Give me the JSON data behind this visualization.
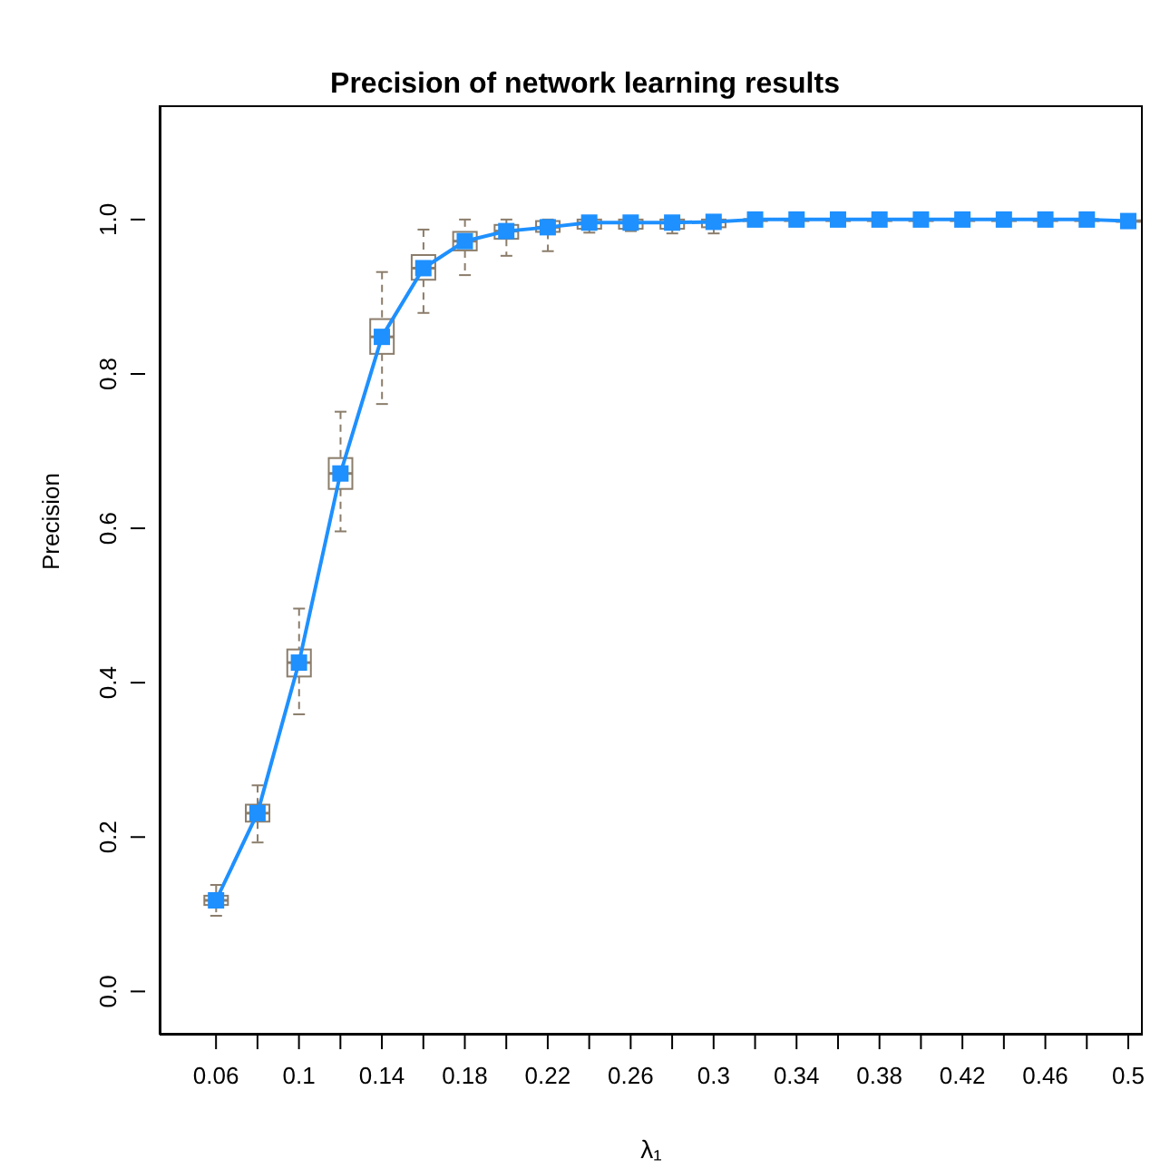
{
  "chart_data": {
    "type": "box",
    "title": "Precision of network learning results",
    "xlabel": "λ₁",
    "ylabel": "Precision",
    "categories": [
      "0.06",
      null,
      "0.1",
      null,
      "0.14",
      null,
      "0.18",
      null,
      "0.22",
      null,
      "0.26",
      null,
      "0.3",
      null,
      "0.34",
      null,
      "0.38",
      null,
      "0.42",
      null,
      "0.46",
      null,
      "0.5"
    ],
    "ylim": [
      -0.056,
      1.148
    ],
    "yticks": [
      {
        "value": 0,
        "label": "0.0"
      },
      0.2,
      0.4,
      0.6,
      0.8,
      {
        "value": 1,
        "label": "1.0"
      }
    ],
    "series": [
      {
        "color": "#8b7d6b",
        "line_style": "dashed",
        "boxes": [
          {
            "low": 0.098,
            "q1": 0.112,
            "median": 0.118,
            "q3": 0.124,
            "high": 0.138
          },
          {
            "low": 0.193,
            "q1": 0.22,
            "median": 0.231,
            "q3": 0.242,
            "high": 0.267
          },
          {
            "low": 0.359,
            "q1": 0.408,
            "median": 0.426,
            "q3": 0.443,
            "high": 0.496
          },
          {
            "low": 0.596,
            "q1": 0.651,
            "median": 0.671,
            "q3": 0.691,
            "high": 0.751
          },
          {
            "low": 0.761,
            "q1": 0.826,
            "median": 0.848,
            "q3": 0.871,
            "high": 0.932
          },
          {
            "low": 0.879,
            "q1": 0.922,
            "median": 0.937,
            "q3": 0.954,
            "high": 0.987
          },
          {
            "low": 0.928,
            "q1": 0.96,
            "median": 0.972,
            "q3": 0.984,
            "high": 1.0
          },
          {
            "low": 0.953,
            "q1": 0.975,
            "median": 0.985,
            "q3": 0.993,
            "high": 1.0
          },
          {
            "low": 0.959,
            "q1": 0.984,
            "median": 0.99,
            "q3": 0.998,
            "high": 1.0
          },
          {
            "low": 0.983,
            "q1": 0.988,
            "median": 0.996,
            "q3": 1.0,
            "high": 1.0
          },
          {
            "low": 0.985,
            "q1": 0.988,
            "median": 0.996,
            "q3": 1.0,
            "high": 1.0
          },
          {
            "low": 0.982,
            "q1": 0.988,
            "median": 0.996,
            "q3": 1.0,
            "high": 1.0
          },
          {
            "low": 0.982,
            "q1": 0.99,
            "median": 0.997,
            "q3": 1.0,
            "high": 1.0
          },
          {
            "low": 0.996,
            "q1": 0.998,
            "median": 1.0,
            "q3": 1.0,
            "high": 1.0
          },
          {
            "low": 0.996,
            "q1": 0.998,
            "median": 1.0,
            "q3": 1.0,
            "high": 1.0
          },
          {
            "low": 0.996,
            "q1": 0.998,
            "median": 1.0,
            "q3": 1.0,
            "high": 1.0
          },
          {
            "low": 0.996,
            "q1": 0.998,
            "median": 1.0,
            "q3": 1.0,
            "high": 1.0
          },
          {
            "low": 0.996,
            "q1": 0.998,
            "median": 1.0,
            "q3": 1.0,
            "high": 1.0
          },
          {
            "low": 0.996,
            "q1": 0.998,
            "median": 1.0,
            "q3": 1.0,
            "high": 1.0
          },
          {
            "low": 0.996,
            "q1": 0.998,
            "median": 1.0,
            "q3": 1.0,
            "high": 1.0
          },
          {
            "low": 0.996,
            "q1": 0.998,
            "median": 1.0,
            "q3": 1.0,
            "high": 1.0
          },
          {
            "low": 0.996,
            "q1": 0.998,
            "median": 1.0,
            "q3": 1.0,
            "high": 1.0
          },
          {
            "low": 0.996,
            "q1": 0.997,
            "median": 0.998,
            "q3": 0.999,
            "high": 1.0
          }
        ]
      },
      {
        "type": "line",
        "color": "#1e90ff",
        "marker": "square",
        "line_style": "solid",
        "values": [
          0.118,
          0.231,
          0.426,
          0.671,
          0.848,
          0.937,
          0.972,
          0.985,
          0.99,
          0.996,
          0.996,
          0.996,
          0.997,
          1.0,
          1.0,
          1.0,
          1.0,
          1.0,
          1.0,
          1.0,
          1.0,
          1.0,
          0.998
        ]
      }
    ]
  }
}
